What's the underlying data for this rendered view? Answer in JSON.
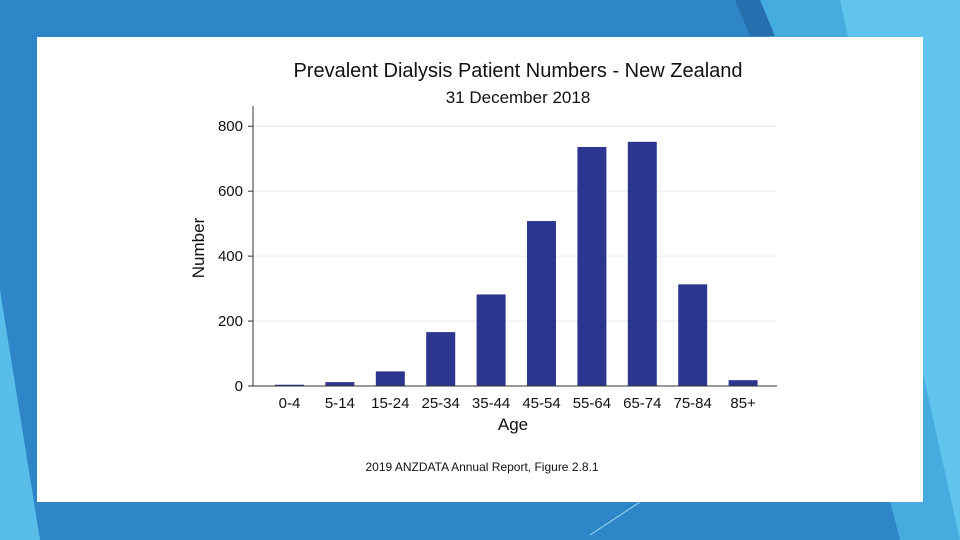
{
  "colors": {
    "bar": "#2c368f",
    "grid": "#e6ecf0",
    "axis": "#333333"
  },
  "chart_data": {
    "type": "bar",
    "title": "Prevalent Dialysis Patient Numbers - New Zealand",
    "subtitle": "31 December 2018",
    "xlabel": "Age",
    "ylabel": "Number",
    "categories": [
      "0-4",
      "5-14",
      "15-24",
      "25-34",
      "35-44",
      "45-54",
      "55-64",
      "65-74",
      "75-84",
      "85+"
    ],
    "values": [
      4,
      12,
      45,
      166,
      282,
      508,
      736,
      752,
      313,
      18
    ],
    "ylim": [
      0,
      850
    ],
    "yticks": [
      0,
      200,
      400,
      600,
      800
    ],
    "grid": true
  },
  "source": "2019 ANZDATA Annual Report, Figure 2.8.1"
}
